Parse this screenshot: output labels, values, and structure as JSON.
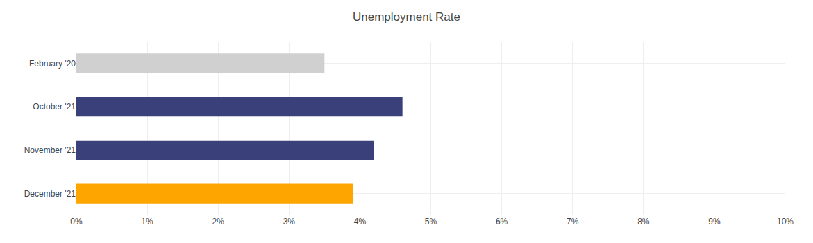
{
  "chart_data": {
    "type": "bar",
    "orientation": "horizontal",
    "title": "Unemployment Rate",
    "categories": [
      "February '20",
      "October '21",
      "November '21",
      "December '21"
    ],
    "values": [
      3.5,
      4.6,
      4.2,
      3.9
    ],
    "colors": [
      "#d0d0d0",
      "#39407a",
      "#39407a",
      "#ffa500"
    ],
    "xlim": [
      0,
      10
    ],
    "xticks": [
      {
        "value": 0,
        "label": "0%"
      },
      {
        "value": 1,
        "label": "1%"
      },
      {
        "value": 2,
        "label": "2%"
      },
      {
        "value": 3,
        "label": "3%"
      },
      {
        "value": 4,
        "label": "4%"
      },
      {
        "value": 5,
        "label": "5%"
      },
      {
        "value": 6,
        "label": "6%"
      },
      {
        "value": 7,
        "label": "7%"
      },
      {
        "value": 8,
        "label": "8%"
      },
      {
        "value": 9,
        "label": "9%"
      },
      {
        "value": 10,
        "label": "10%"
      }
    ],
    "grid": true
  }
}
